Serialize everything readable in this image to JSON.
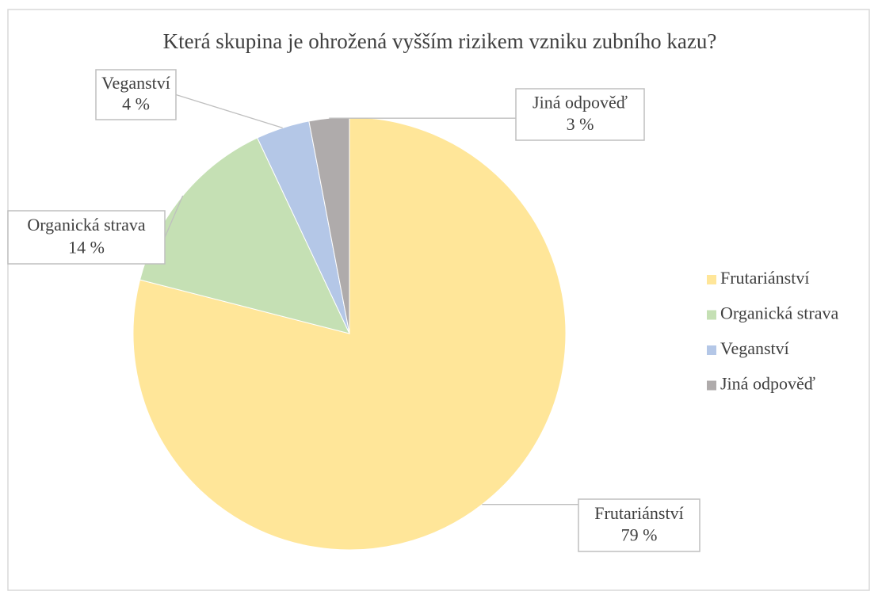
{
  "chart_data": {
    "type": "pie",
    "title": "Která skupina je ohrožená vyšším rizikem vzniku zubního kazu?",
    "categories": [
      "Frutariánství",
      "Organická strava",
      "Veganství",
      "Jiná odpověď"
    ],
    "values": [
      79,
      14,
      4,
      3
    ],
    "value_labels": [
      "79 %",
      "14 %",
      "4 %",
      "3 %"
    ],
    "colors": [
      "#FFE699",
      "#C5E0B4",
      "#B4C7E7",
      "#AFABAB"
    ],
    "legend": "right"
  }
}
